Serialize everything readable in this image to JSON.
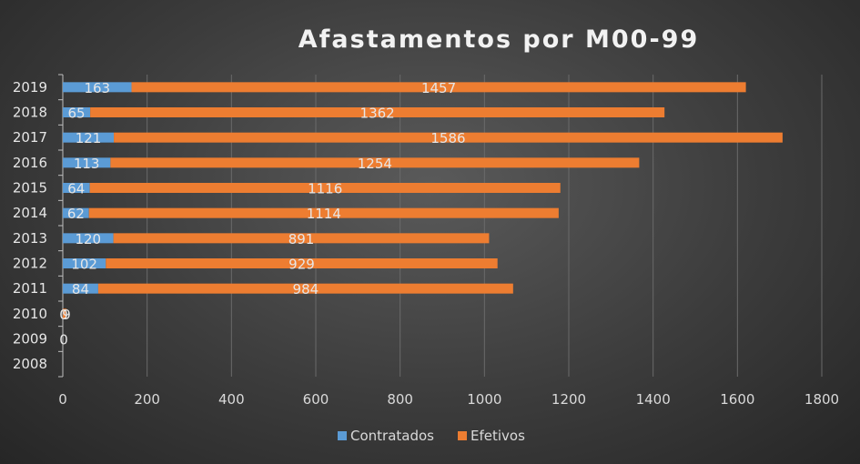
{
  "chart_data": {
    "type": "bar",
    "orientation": "horizontal",
    "stacked": true,
    "title": "Afastamentos por M00-99",
    "xlabel": "",
    "ylabel": "",
    "categories": [
      "2008",
      "2009",
      "2010",
      "2011",
      "2012",
      "2013",
      "2014",
      "2015",
      "2016",
      "2017",
      "2018",
      "2019"
    ],
    "series": [
      {
        "name": "Contratados",
        "color": "#5b9bd5",
        "values": [
          null,
          0,
          0,
          84,
          102,
          120,
          62,
          64,
          113,
          121,
          65,
          163
        ],
        "labels": [
          "",
          "0",
          "0",
          "84",
          "102",
          "120",
          "62",
          "64",
          "113",
          "121",
          "65",
          "163"
        ]
      },
      {
        "name": "Efetivos",
        "color": "#ed7d31",
        "values": [
          null,
          null,
          9,
          984,
          929,
          891,
          1114,
          1116,
          1254,
          1586,
          1362,
          1457
        ],
        "labels": [
          "",
          "",
          "9",
          "984",
          "929",
          "891",
          "1114",
          "1116",
          "1254",
          "1586",
          "1362",
          "1457"
        ]
      }
    ],
    "xlim": [
      0,
      1800
    ],
    "xticks": [
      0,
      200,
      400,
      600,
      800,
      1000,
      1200,
      1400,
      1600,
      1800
    ],
    "xtick_labels": [
      "0",
      "200",
      "400",
      "600",
      "800",
      "1000",
      "1200",
      "1400",
      "1600",
      "1800"
    ],
    "grid": true,
    "legend_position": "bottom-center"
  }
}
